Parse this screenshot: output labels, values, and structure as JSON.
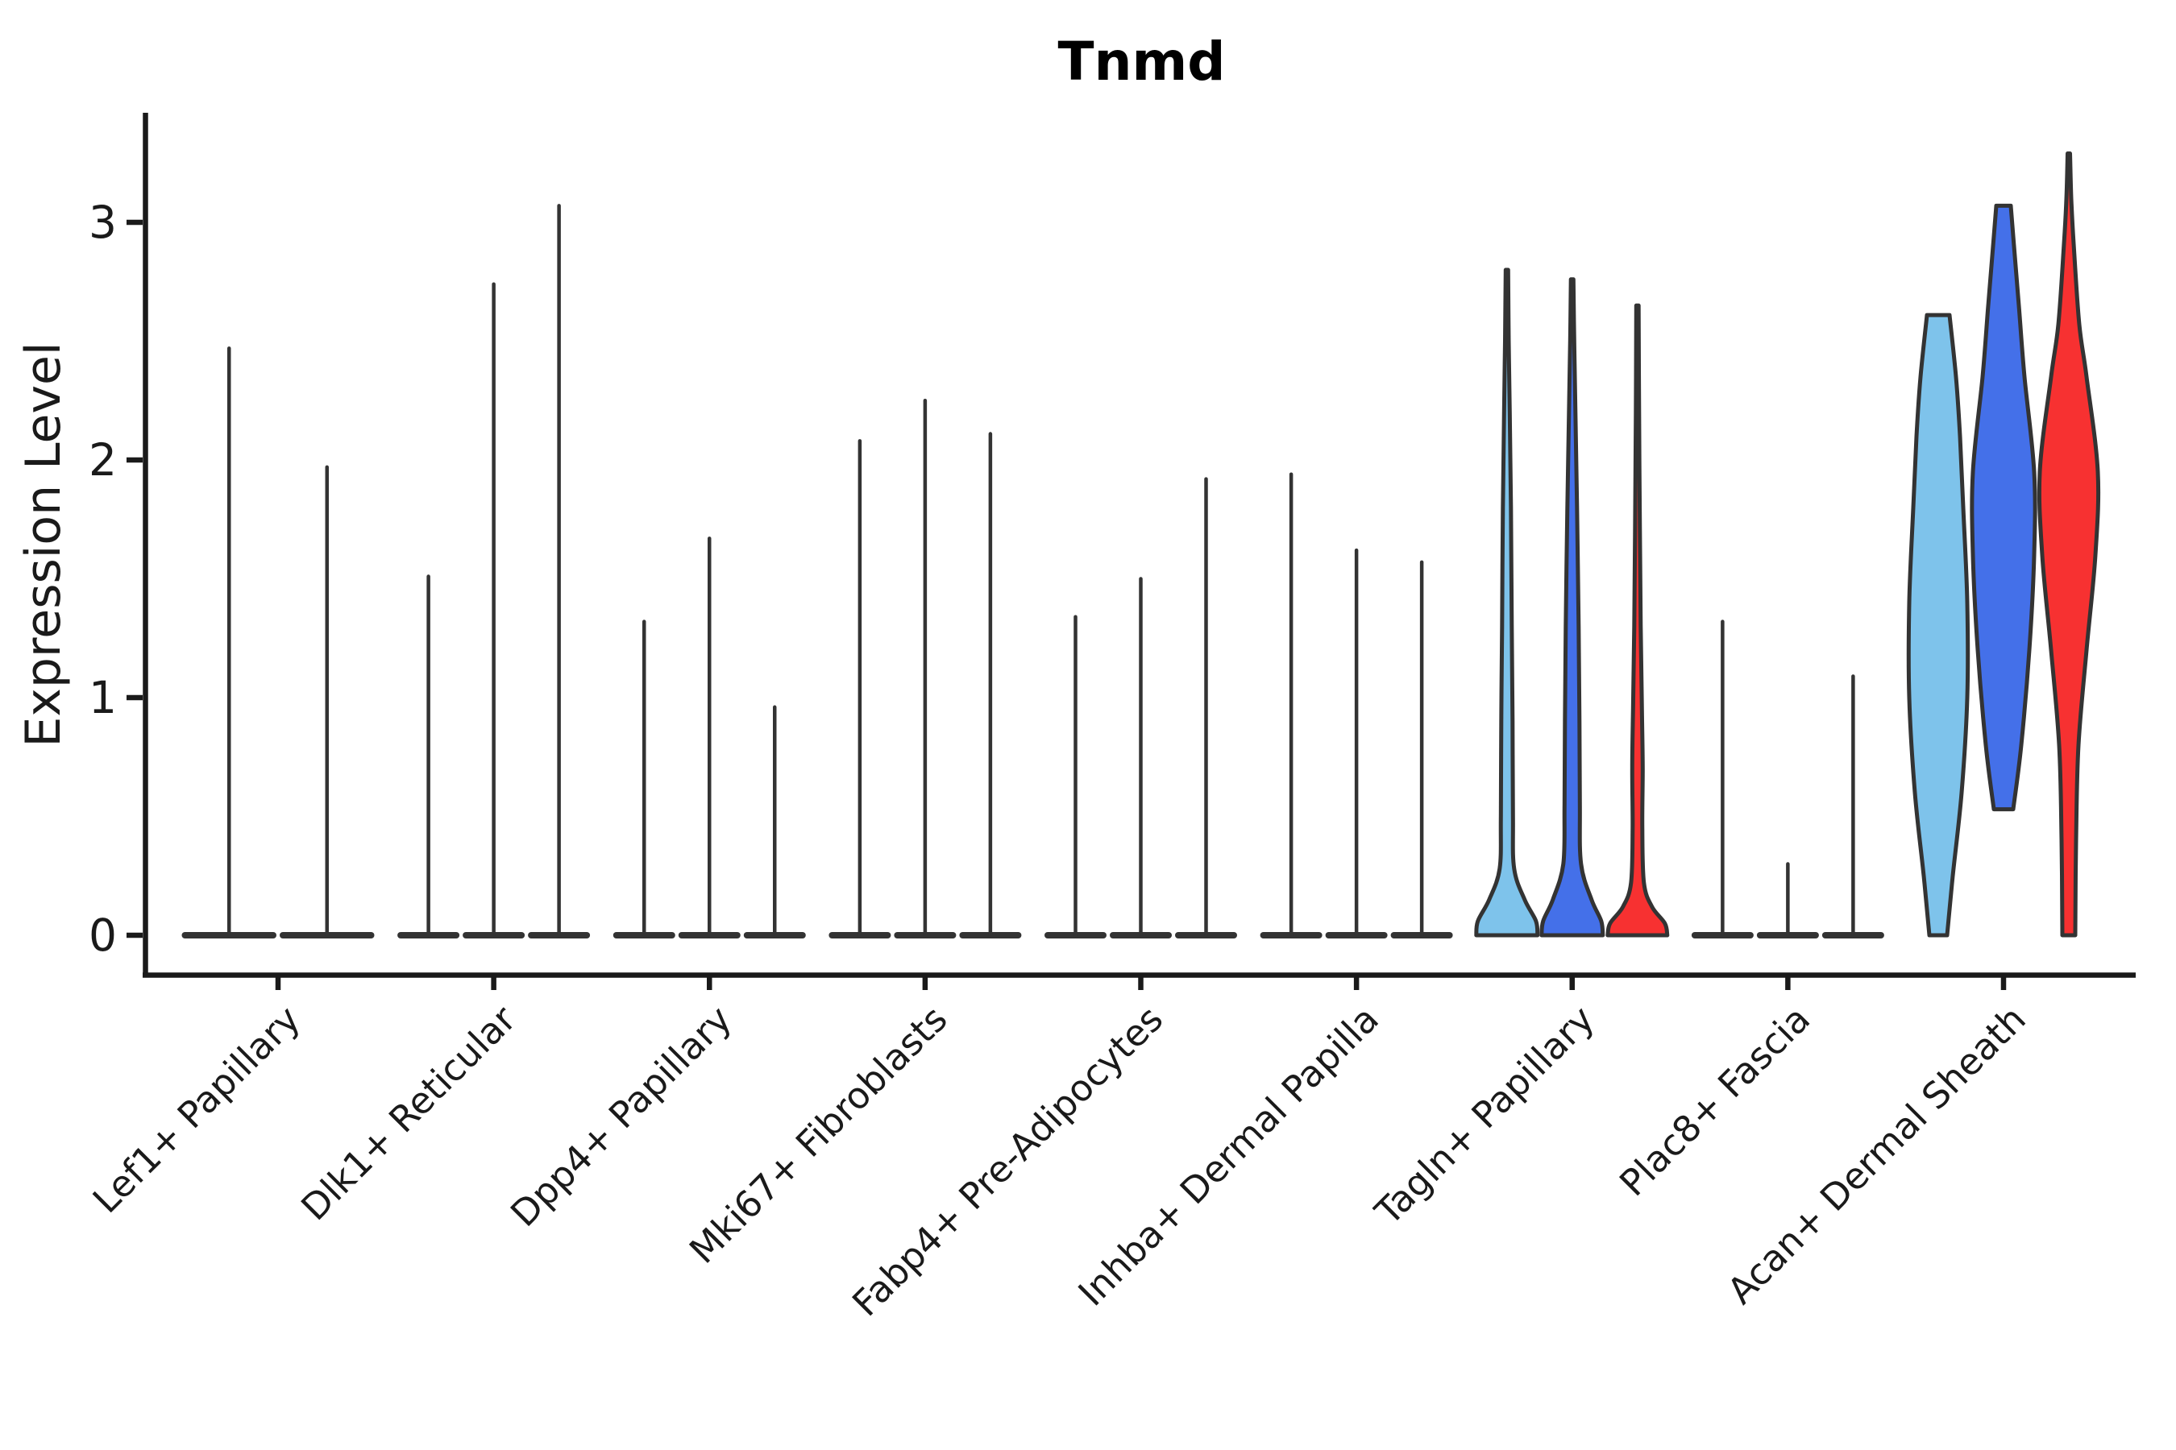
{
  "chart_data": {
    "type": "violin",
    "title": "Tnmd",
    "ylabel": "Expression Level",
    "xlabel": "",
    "yticks": [
      0,
      1,
      2,
      3
    ],
    "ylim": [
      -0.17,
      3.45
    ],
    "grid": false,
    "legend": "none",
    "axis_color": "#1a1a1a",
    "edge_color": "#333333",
    "palette": {
      "lightblue": "#7EC3EB",
      "blue": "#4470E9",
      "red": "#F73131"
    },
    "categories": [
      "Lef1+ Papillary",
      "Dlk1+ Reticular",
      "Dpp4+ Papillary",
      "Mki67+ Fibroblasts",
      "Fabp4+ Pre-Adipocytes",
      "Inhba+ Dermal Papilla",
      "Tagln+ Papillary",
      "Plac8+ Fascia",
      "Acan+ Dermal Sheath"
    ],
    "groups": [
      {
        "category": "Lef1+ Papillary",
        "violins": [
          {
            "color": "lightblue",
            "kind": "spike",
            "min": 0,
            "max": 2.47
          },
          {
            "color": "blue",
            "kind": "spike",
            "min": 0,
            "max": 1.97
          }
        ]
      },
      {
        "category": "Dlk1+ Reticular",
        "violins": [
          {
            "color": "lightblue",
            "kind": "spike",
            "min": 0,
            "max": 1.51
          },
          {
            "color": "blue",
            "kind": "spike",
            "min": 0,
            "max": 2.74
          },
          {
            "color": "red",
            "kind": "spike",
            "min": 0,
            "max": 3.07
          }
        ]
      },
      {
        "category": "Dpp4+ Papillary",
        "violins": [
          {
            "color": "lightblue",
            "kind": "spike",
            "min": 0,
            "max": 1.32
          },
          {
            "color": "blue",
            "kind": "spike",
            "min": 0,
            "max": 1.67
          },
          {
            "color": "red",
            "kind": "spike",
            "min": 0,
            "max": 0.96
          }
        ]
      },
      {
        "category": "Mki67+ Fibroblasts",
        "violins": [
          {
            "color": "lightblue",
            "kind": "spike",
            "min": 0,
            "max": 2.08
          },
          {
            "color": "blue",
            "kind": "spike",
            "min": 0,
            "max": 2.25
          },
          {
            "color": "red",
            "kind": "spike",
            "min": 0,
            "max": 2.11
          }
        ]
      },
      {
        "category": "Fabp4+ Pre-Adipocytes",
        "violins": [
          {
            "color": "lightblue",
            "kind": "spike",
            "min": 0,
            "max": 1.34
          },
          {
            "color": "blue",
            "kind": "spike",
            "min": 0,
            "max": 1.5
          },
          {
            "color": "red",
            "kind": "spike",
            "min": 0,
            "max": 1.92
          }
        ]
      },
      {
        "category": "Inhba+ Dermal Papilla",
        "violins": [
          {
            "color": "lightblue",
            "kind": "spike",
            "min": 0,
            "max": 1.94
          },
          {
            "color": "blue",
            "kind": "spike",
            "min": 0,
            "max": 1.62
          },
          {
            "color": "red",
            "kind": "spike",
            "min": 0,
            "max": 1.57
          }
        ]
      },
      {
        "category": "Tagln+ Papillary",
        "violins": [
          {
            "color": "lightblue",
            "kind": "violin",
            "min": 0,
            "max": 2.8,
            "profile": [
              [
                0,
                38
              ],
              [
                0.06,
                36
              ],
              [
                0.15,
                22
              ],
              [
                0.28,
                9
              ],
              [
                0.5,
                7.5
              ],
              [
                0.9,
                7
              ],
              [
                1.3,
                6
              ],
              [
                1.8,
                5
              ],
              [
                2.2,
                3.5
              ],
              [
                2.5,
                2.3
              ],
              [
                2.8,
                1.5
              ]
            ]
          },
          {
            "color": "blue",
            "kind": "violin",
            "min": 0,
            "max": 2.76,
            "profile": [
              [
                0,
                38
              ],
              [
                0.06,
                36
              ],
              [
                0.15,
                24
              ],
              [
                0.3,
                11
              ],
              [
                0.55,
                9.5
              ],
              [
                0.9,
                9
              ],
              [
                1.3,
                8
              ],
              [
                1.8,
                6
              ],
              [
                2.2,
                4
              ],
              [
                2.5,
                2.5
              ],
              [
                2.76,
                1.6
              ]
            ]
          },
          {
            "color": "red",
            "kind": "violin",
            "min": 0,
            "max": 2.65,
            "profile": [
              [
                0,
                37
              ],
              [
                0.05,
                34
              ],
              [
                0.12,
                18
              ],
              [
                0.22,
                8
              ],
              [
                0.45,
                6
              ],
              [
                0.7,
                6.5
              ],
              [
                0.95,
                5.5
              ],
              [
                1.3,
                4
              ],
              [
                1.7,
                3
              ],
              [
                2.2,
                2
              ],
              [
                2.65,
                1.4
              ]
            ]
          }
        ]
      },
      {
        "category": "Plac8+ Fascia",
        "violins": [
          {
            "color": "lightblue",
            "kind": "spike",
            "min": 0,
            "max": 1.32
          },
          {
            "color": "blue",
            "kind": "spike",
            "min": 0,
            "max": 0.3
          },
          {
            "color": "red",
            "kind": "spike",
            "min": 0,
            "max": 1.09
          }
        ]
      },
      {
        "category": "Acan+ Dermal Sheath",
        "violins": [
          {
            "color": "lightblue",
            "kind": "violin",
            "min": 0,
            "max": 2.61,
            "profile": [
              [
                0,
                11
              ],
              [
                0.25,
                18
              ],
              [
                0.6,
                29
              ],
              [
                1.0,
                36
              ],
              [
                1.4,
                36
              ],
              [
                1.8,
                31
              ],
              [
                2.1,
                27
              ],
              [
                2.35,
                22
              ],
              [
                2.61,
                14
              ]
            ]
          },
          {
            "color": "blue",
            "kind": "violin",
            "min": 0.53,
            "max": 3.07,
            "profile": [
              [
                0.53,
                12
              ],
              [
                0.8,
                22
              ],
              [
                1.2,
                32
              ],
              [
                1.6,
                38
              ],
              [
                1.95,
                38
              ],
              [
                2.35,
                26
              ],
              [
                2.65,
                19
              ],
              [
                2.9,
                13
              ],
              [
                3.07,
                9
              ]
            ]
          },
          {
            "color": "red",
            "kind": "violin",
            "min": 0,
            "max": 3.29,
            "profile": [
              [
                0,
                8
              ],
              [
                0.4,
                9
              ],
              [
                0.8,
                12
              ],
              [
                1.2,
                22
              ],
              [
                1.6,
                33
              ],
              [
                1.95,
                36
              ],
              [
                2.35,
                22
              ],
              [
                2.57,
                13
              ],
              [
                2.91,
                6
              ],
              [
                3.1,
                3
              ],
              [
                3.29,
                1.5
              ]
            ]
          }
        ]
      }
    ]
  }
}
